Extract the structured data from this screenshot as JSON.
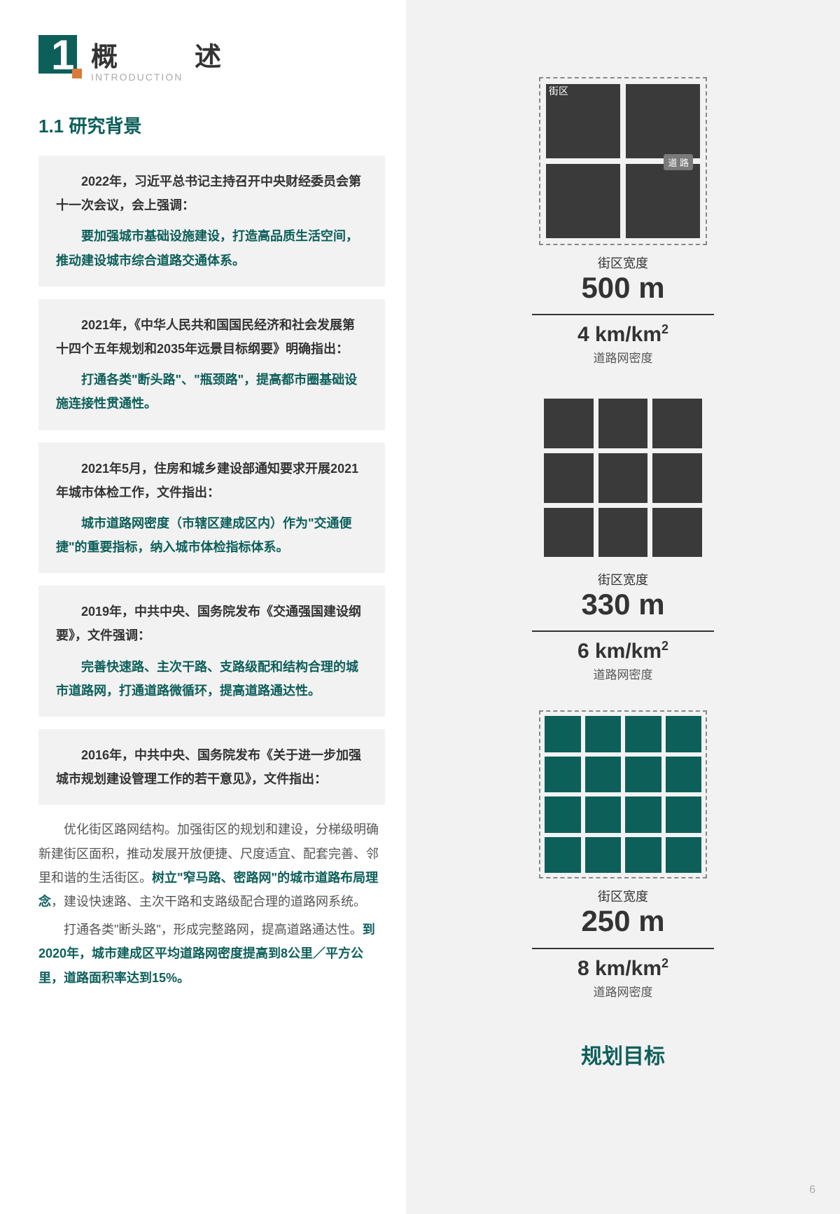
{
  "page": {
    "number": "6"
  },
  "header": {
    "chapter_number": "1",
    "title": "概　述",
    "subtitle": "INTRODUCTION",
    "accent_color": "#0d5f5a",
    "orange_color": "#d97a3a"
  },
  "section": {
    "title": "1.1 研究背景"
  },
  "quotes": [
    {
      "lead": "2022年，习近平总书记主持召开中央财经委员会第十一次会议，会上强调：",
      "bold": "要加强城市基础设施建设，打造高品质生活空间，推动建设城市综合道路交通体系。"
    },
    {
      "lead": "2021年，《中华人民共和国国民经济和社会发展第十四个五年规划和2035年远景目标纲要》明确指出：",
      "bold": "打通各类\"断头路\"、\"瓶颈路\"，提高都市圈基础设施连接性贯通性。"
    },
    {
      "lead": "2021年5月，住房和城乡建设部通知要求开展2021年城市体检工作，文件指出：",
      "bold": "城市道路网密度（市辖区建成区内）作为\"交通便捷\"的重要指标，纳入城市体检指标体系。"
    },
    {
      "lead": "2019年，中共中央、国务院发布《交通强国建设纲要》，文件强调：",
      "bold": "完善快速路、主次干路、支路级配和结构合理的城市道路网，打通道路微循环，提高道路通达性。"
    },
    {
      "lead": "2016年，中共中央、国务院发布《关于进一步加强城市规划建设管理工作的若干意见》，文件指出：",
      "bold": ""
    }
  ],
  "body": {
    "p1_pre": "优化街区路网结构。加强街区的规划和建设，分梯级明确新建街区面积，推动发展开放便捷、尺度适宜、配套完善、邻里和谐的生活街区。",
    "p1_em": "树立\"窄马路、密路网\"的城市道路布局理念",
    "p1_post": "，建设快速路、主次干路和支路级配合理的道路网系统。",
    "p2_pre": "打通各类\"断头路\"，形成完整路网，提高道路通达性。",
    "p2_em": "到2020年，城市建成区平均道路网密度提高到8公里／平方公里，道路面积率达到15%。"
  },
  "diagrams": {
    "block_label": "街区",
    "road_label": "道 路",
    "width_label": "街区宽度",
    "density_label": "道路网密度",
    "planning_target": "规划目标",
    "colors": {
      "dark_cell": "#3a3a3a",
      "teal_cell": "#0d5f5a",
      "road": "#ffffff",
      "dashed_border": "#888888"
    },
    "items": [
      {
        "grid": 2,
        "size": 240,
        "gap": 8,
        "border_style": "dashed",
        "cell_color": "#3a3a3a",
        "width_value": "500 m",
        "density_value": "4 km/km",
        "density_sup": "2",
        "show_labels": true
      },
      {
        "grid": 3,
        "size": 240,
        "gap": 7,
        "border_style": "none",
        "cell_color": "#3a3a3a",
        "width_value": "330 m",
        "density_value": "6 km/km",
        "density_sup": "2",
        "show_labels": false
      },
      {
        "grid": 4,
        "size": 240,
        "gap": 6,
        "border_style": "dashed",
        "cell_color": "#0d5f5a",
        "width_value": "250 m",
        "density_value": "8 km/km",
        "density_sup": "2",
        "show_labels": false
      }
    ]
  }
}
